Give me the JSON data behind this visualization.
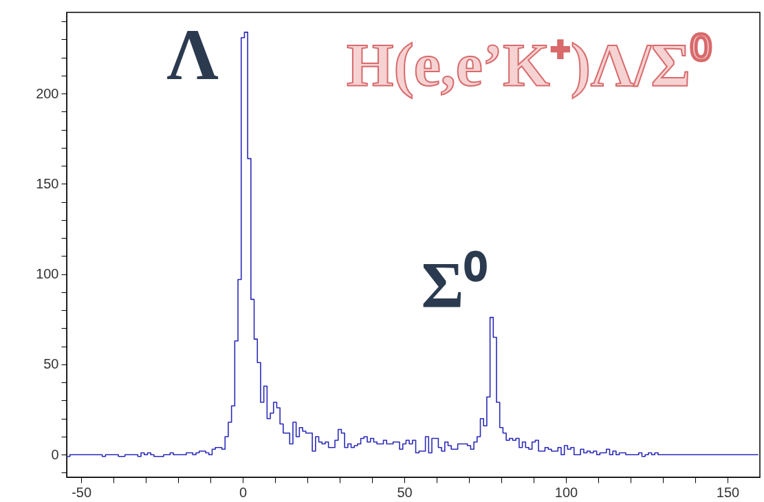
{
  "chart_data": {
    "type": "histogram",
    "bins": [
      -54.5,
      -53.5,
      -52.5,
      -51.5,
      -50.5,
      -49.5,
      -48.5,
      -47.5,
      -46.5,
      -45.5,
      -44.5,
      -43.5,
      -42.5,
      -41.5,
      -40.5,
      -39.5,
      -38.5,
      -37.5,
      -36.5,
      -35.5,
      -34.5,
      -33.5,
      -32.5,
      -31.5,
      -30.5,
      -29.5,
      -28.5,
      -27.5,
      -26.5,
      -25.5,
      -24.5,
      -23.5,
      -22.5,
      -21.5,
      -20.5,
      -19.5,
      -18.5,
      -17.5,
      -16.5,
      -15.5,
      -14.5,
      -13.5,
      -12.5,
      -11.5,
      -10.5,
      -9.5,
      -8.5,
      -7.5,
      -6.5,
      -5.5,
      -4.5,
      -3.5,
      -2.5,
      -1.5,
      -0.5,
      0.5,
      1.5,
      2.5,
      3.5,
      4.5,
      5.5,
      6.5,
      7.5,
      8.5,
      9.5,
      10.5,
      11.5,
      12.5,
      13.5,
      14.5,
      15.5,
      16.5,
      17.5,
      18.5,
      19.5,
      20.5,
      21.5,
      22.5,
      23.5,
      24.5,
      25.5,
      26.5,
      27.5,
      28.5,
      29.5,
      30.5,
      31.5,
      32.5,
      33.5,
      34.5,
      35.5,
      36.5,
      37.5,
      38.5,
      39.5,
      40.5,
      41.5,
      42.5,
      43.5,
      44.5,
      45.5,
      46.5,
      47.5,
      48.5,
      49.5,
      50.5,
      51.5,
      52.5,
      53.5,
      54.5,
      55.5,
      56.5,
      57.5,
      58.5,
      59.5,
      60.5,
      61.5,
      62.5,
      63.5,
      64.5,
      65.5,
      66.5,
      67.5,
      68.5,
      69.5,
      70.5,
      71.5,
      72.5,
      73.5,
      74.5,
      75.5,
      76.5,
      77.5,
      78.5,
      79.5,
      80.5,
      81.5,
      82.5,
      83.5,
      84.5,
      85.5,
      86.5,
      87.5,
      88.5,
      89.5,
      90.5,
      91.5,
      92.5,
      93.5,
      94.5,
      95.5,
      96.5,
      97.5,
      98.5,
      99.5,
      100.5,
      101.5,
      102.5,
      103.5,
      104.5,
      105.5,
      106.5,
      107.5,
      108.5,
      109.5,
      110.5,
      111.5,
      112.5,
      113.5,
      114.5,
      115.5,
      116.5,
      117.5,
      118.5,
      119.5,
      120.5,
      121.5,
      122.5,
      123.5,
      124.5,
      125.5,
      126.5,
      127.5,
      128.5,
      129.5,
      130.5,
      131.5,
      132.5,
      133.5,
      134.5,
      135.5,
      136.5,
      137.5,
      138.5,
      139.5,
      140.5,
      141.5,
      142.5,
      143.5,
      144.5,
      145.5,
      146.5,
      147.5,
      148.5,
      149.5,
      150.5,
      151.5,
      152.5,
      153.5,
      154.5,
      155.5,
      156.5,
      157.5,
      158.5,
      159.5
    ],
    "values": [
      -1,
      0,
      0,
      0,
      0,
      0,
      0,
      0,
      0,
      0,
      0,
      -1,
      0,
      0,
      0,
      0,
      -1,
      -1,
      0,
      0,
      0,
      0,
      -1,
      1,
      0,
      1,
      0,
      -1,
      -1,
      -1,
      0,
      0,
      1,
      0,
      0,
      0,
      0,
      1,
      1,
      0,
      1,
      2,
      2,
      1,
      0,
      3,
      4,
      4,
      3,
      10,
      18,
      27,
      63,
      97,
      231,
      234,
      164,
      86,
      64,
      51,
      29,
      38,
      20,
      23,
      29,
      26,
      17,
      12,
      12,
      6,
      18,
      10,
      15,
      13,
      12,
      12,
      2,
      10,
      7,
      6,
      7,
      4,
      4,
      8,
      14,
      12,
      4,
      6,
      4,
      5,
      6,
      9,
      10,
      7,
      9,
      7,
      6,
      6,
      8,
      6,
      6,
      7,
      7,
      3,
      6,
      8,
      6,
      8,
      1,
      2,
      2,
      10,
      1,
      9,
      9,
      4,
      2,
      7,
      5,
      3,
      3,
      6,
      6,
      6,
      5,
      3,
      7,
      10,
      20,
      16,
      32,
      76,
      65,
      29,
      15,
      12,
      8,
      9,
      8,
      9,
      4,
      7,
      4,
      3,
      7,
      8,
      2,
      2,
      4,
      3,
      2,
      2,
      4,
      0,
      5,
      3,
      4,
      0,
      0,
      3,
      1,
      2,
      1,
      2,
      0,
      1,
      1,
      3,
      0,
      2,
      0,
      1,
      1,
      0,
      0,
      0,
      0,
      1,
      -1,
      0,
      1,
      0,
      1,
      0,
      0,
      0,
      0,
      0,
      0,
      0,
      0,
      0,
      0,
      0,
      0,
      0,
      0,
      0,
      0,
      0,
      0,
      0,
      0,
      0,
      0,
      0,
      0,
      0,
      0,
      0,
      0,
      0,
      0,
      0
    ],
    "color": "#2a2ab8",
    "xlim": [
      -54.5,
      160
    ],
    "xticks": [
      -50,
      {
        "value": -40,
        "label": null
      },
      {
        "value": -30,
        "label": null
      },
      {
        "value": -20,
        "label": null
      },
      {
        "value": -10,
        "label": null
      },
      0,
      {
        "value": 10,
        "label": null
      },
      {
        "value": 20,
        "label": null
      },
      {
        "value": 30,
        "label": null
      },
      {
        "value": 40,
        "label": null
      },
      50,
      {
        "value": 60,
        "label": null
      },
      {
        "value": 70,
        "label": null
      },
      {
        "value": 80,
        "label": null
      },
      {
        "value": 90,
        "label": null
      },
      100,
      {
        "value": 110,
        "label": null
      },
      {
        "value": 120,
        "label": null
      },
      {
        "value": 130,
        "label": null
      },
      {
        "value": 140,
        "label": null
      },
      150
    ],
    "ylim": [
      -12.5,
      245
    ],
    "yticks": [
      {
        "value": -10,
        "label": null
      },
      0,
      {
        "value": 10,
        "label": null
      },
      {
        "value": 20,
        "label": null
      },
      {
        "value": 30,
        "label": null
      },
      {
        "value": 40,
        "label": null
      },
      50,
      {
        "value": 60,
        "label": null
      },
      {
        "value": 70,
        "label": null
      },
      {
        "value": 80,
        "label": null
      },
      {
        "value": 90,
        "label": null
      },
      100,
      {
        "value": 110,
        "label": null
      },
      {
        "value": 120,
        "label": null
      },
      {
        "value": 130,
        "label": null
      },
      {
        "value": 140,
        "label": null
      },
      150,
      {
        "value": 160,
        "label": null
      },
      {
        "value": 170,
        "label": null
      },
      {
        "value": 180,
        "label": null
      },
      {
        "value": 190,
        "label": null
      },
      200,
      {
        "value": 210,
        "label": null
      },
      {
        "value": 220,
        "label": null
      },
      {
        "value": 230,
        "label": null
      },
      {
        "value": 240,
        "label": null
      }
    ],
    "grid": false,
    "annotations": [
      "Λ",
      "Σ⁰",
      "H(e,e’K⁺)Λ/Σ⁰"
    ]
  }
}
